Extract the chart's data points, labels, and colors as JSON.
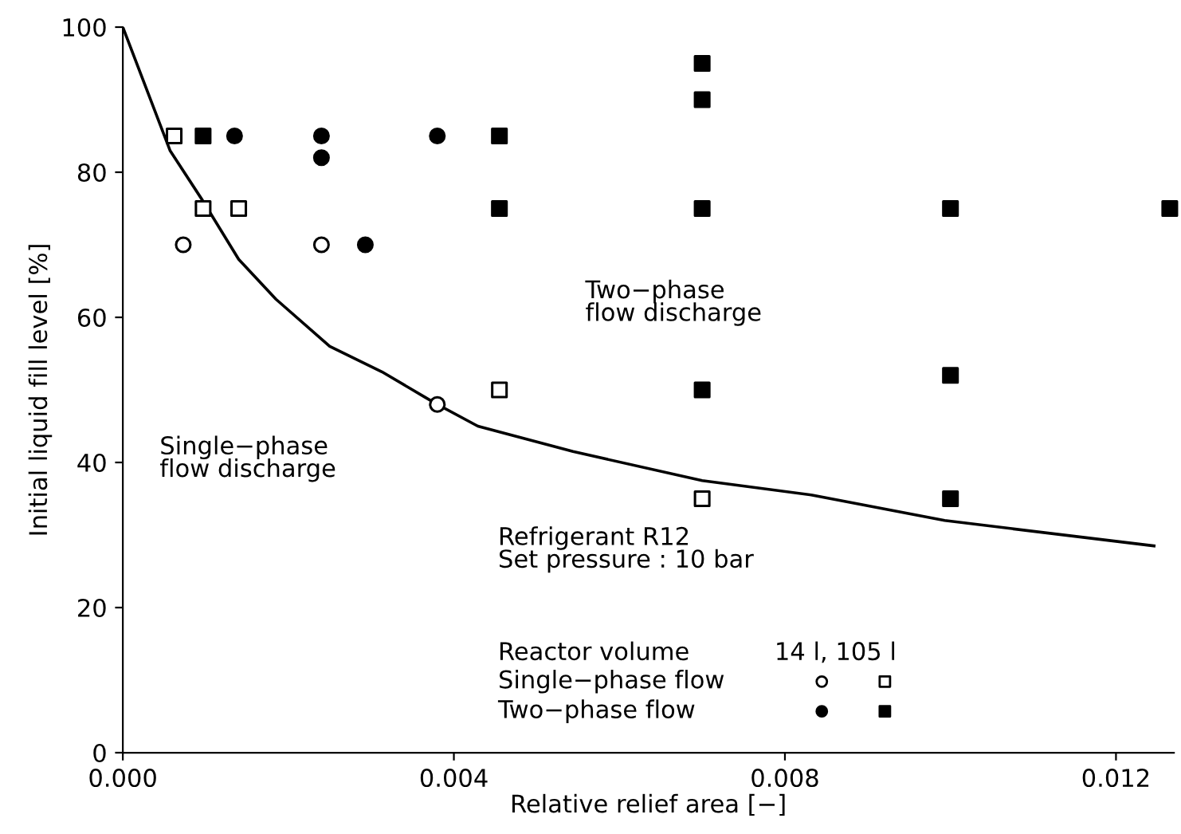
{
  "chart_data": {
    "type": "scatter",
    "xlabel": "Relative relief area [−]",
    "ylabel": "Initial liquid fill level [%]",
    "xlim": [
      0,
      0.0127
    ],
    "ylim": [
      0,
      100
    ],
    "xticks": [
      {
        "value": 0,
        "label": "0.000"
      },
      {
        "value": 0.004,
        "label": "0.004"
      },
      {
        "value": 0.008,
        "label": "0.008"
      },
      {
        "value": 0.012,
        "label": "0.012"
      }
    ],
    "yticks": [
      0,
      20,
      40,
      60,
      80,
      100
    ],
    "grid": false,
    "series": [
      {
        "color": "#000000",
        "marker": "circle",
        "x": [
          0.00073,
          0.0024,
          0.0038
        ],
        "values": [
          70,
          70,
          48
        ]
      },
      {
        "color": "#000000",
        "marker": "square",
        "x": [
          0.00062,
          0.00097,
          0.0014,
          0.00455,
          0.007
        ],
        "values": [
          85,
          75,
          75,
          50,
          35
        ]
      },
      {
        "color": "#000000",
        "marker": "circle",
        "x": [
          0.00135,
          0.0024,
          0.0024,
          0.0038,
          0.00293
        ],
        "values": [
          85,
          85,
          82,
          85,
          70
        ]
      },
      {
        "color": "#000000",
        "marker": "square",
        "x": [
          0.00097,
          0.00455,
          0.00455,
          0.007,
          0.007,
          0.007,
          0.007,
          0.01,
          0.01,
          0.01,
          0.01265
        ],
        "values": [
          85,
          85,
          75,
          95,
          90,
          75,
          50,
          75,
          52,
          35,
          75
        ]
      },
      {
        "type": "line",
        "color": "#000000",
        "marker": "none",
        "line_style": "solid",
        "x": [
          0,
          0.00057,
          0.00097,
          0.0014,
          0.00185,
          0.0025,
          0.00313,
          0.00365,
          0.0038,
          0.00429,
          0.00544,
          0.007,
          0.00833,
          0.00993,
          0.01246
        ],
        "values": [
          100,
          83,
          76,
          68,
          62.5,
          56,
          52.5,
          49,
          48,
          45,
          41.5,
          37.5,
          35.5,
          32,
          28.5
        ]
      }
    ],
    "annotations": [
      "Two−phase\nflow discharge",
      "Single−phase\nflow discharge",
      "Refrigerant R12\nSet pressure : 10 bar",
      "Reactor volume",
      "14 l, 105 l",
      "Single−phase flow",
      "Two−phase flow"
    ]
  }
}
